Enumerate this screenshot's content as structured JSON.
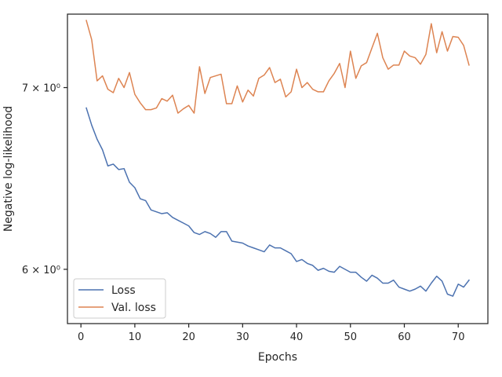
{
  "chart_data": {
    "type": "line",
    "xlabel": "Epochs",
    "ylabel": "Negative log-likelihood",
    "yscale": "log",
    "xlim": [
      -2.5,
      75.5
    ],
    "ylim": [
      5.73,
      7.45
    ],
    "xticks": [
      0,
      10,
      20,
      30,
      40,
      50,
      60,
      70
    ],
    "yticks": [
      {
        "value": 6.0,
        "label": "6 × 10⁰"
      },
      {
        "value": 7.0,
        "label": "7 × 10⁰"
      }
    ],
    "grid": false,
    "legend": "lower-left",
    "x": [
      1,
      2,
      3,
      4,
      5,
      6,
      7,
      8,
      9,
      10,
      11,
      12,
      13,
      14,
      15,
      16,
      17,
      18,
      19,
      20,
      21,
      22,
      23,
      24,
      25,
      26,
      27,
      28,
      29,
      30,
      31,
      32,
      33,
      34,
      35,
      36,
      37,
      38,
      39,
      40,
      41,
      42,
      43,
      44,
      45,
      46,
      47,
      48,
      49,
      50,
      51,
      52,
      53,
      54,
      55,
      56,
      57,
      58,
      59,
      60,
      61,
      62,
      63,
      64,
      65,
      66,
      67,
      68,
      69,
      70,
      71,
      72
    ],
    "series": [
      {
        "name": "Loss",
        "color": "#4c72b0",
        "values": [
          6.88,
          6.78,
          6.7,
          6.64,
          6.55,
          6.56,
          6.53,
          6.535,
          6.46,
          6.43,
          6.37,
          6.36,
          6.31,
          6.3,
          6.29,
          6.295,
          6.27,
          6.255,
          6.24,
          6.225,
          6.19,
          6.18,
          6.195,
          6.185,
          6.165,
          6.195,
          6.195,
          6.145,
          6.14,
          6.135,
          6.12,
          6.11,
          6.1,
          6.09,
          6.125,
          6.11,
          6.11,
          6.095,
          6.08,
          6.04,
          6.05,
          6.03,
          6.02,
          5.995,
          6.005,
          5.99,
          5.985,
          6.015,
          6.0,
          5.985,
          5.985,
          5.96,
          5.94,
          5.97,
          5.955,
          5.93,
          5.93,
          5.945,
          5.91,
          5.9,
          5.89,
          5.9,
          5.915,
          5.89,
          5.93,
          5.965,
          5.94,
          5.875,
          5.865,
          5.925,
          5.91,
          5.945
        ]
      },
      {
        "name": "Val. loss",
        "color": "#dd8452",
        "values": [
          7.41,
          7.29,
          7.04,
          7.07,
          6.99,
          6.97,
          7.055,
          7.0,
          7.09,
          6.96,
          6.91,
          6.87,
          6.87,
          6.88,
          6.935,
          6.92,
          6.955,
          6.85,
          6.875,
          6.895,
          6.85,
          7.125,
          6.965,
          7.06,
          7.07,
          7.08,
          6.905,
          6.905,
          7.01,
          6.915,
          6.985,
          6.95,
          7.055,
          7.075,
          7.12,
          7.03,
          7.05,
          6.945,
          6.975,
          7.11,
          7.0,
          7.03,
          6.99,
          6.975,
          6.975,
          7.04,
          7.085,
          7.145,
          7.0,
          7.22,
          7.055,
          7.13,
          7.15,
          7.24,
          7.33,
          7.18,
          7.11,
          7.135,
          7.135,
          7.22,
          7.19,
          7.18,
          7.14,
          7.2,
          7.39,
          7.21,
          7.34,
          7.22,
          7.31,
          7.305,
          7.255,
          7.135
        ]
      }
    ]
  }
}
